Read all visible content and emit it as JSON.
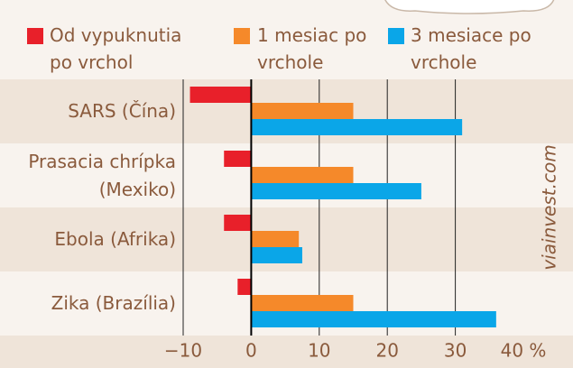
{
  "chart_data": {
    "type": "hbar",
    "categories": [
      "SARS (Čína)",
      "Prasacia chrípka (Mexiko)",
      "Ebola (Afrika)",
      "Zika (Brazília)"
    ],
    "series": [
      {
        "name": "Od vypuknutia po vrchol",
        "color": "#e8202a",
        "values": [
          -9,
          -4,
          -4,
          -2
        ]
      },
      {
        "name": "1 mesiac po vrchole",
        "color": "#f5892a",
        "values": [
          15,
          15,
          7,
          15
        ]
      },
      {
        "name": "3 mesiace po vrchole",
        "color": "#0aa6e8",
        "values": [
          31,
          25,
          7.5,
          36
        ]
      }
    ],
    "xlim": [
      -10,
      40
    ],
    "xticks": [
      {
        "value": -10,
        "label": "−10"
      },
      0,
      10,
      20,
      30,
      {
        "value": 40,
        "label": "40 %"
      }
    ],
    "grid": true,
    "source": "viainvest.com"
  }
}
